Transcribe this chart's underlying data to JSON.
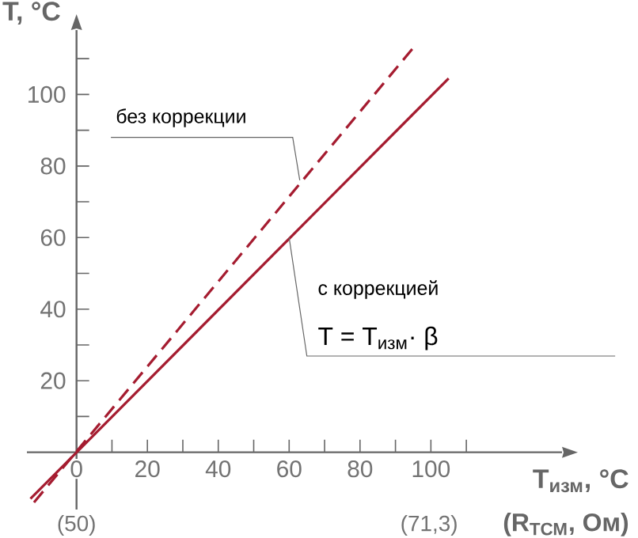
{
  "chart_data": {
    "type": "line",
    "xlabel": "T$_{изм}$, °C",
    "ylabel": "T, °C",
    "xlim": [
      -14,
      137
    ],
    "ylim": [
      -16,
      118
    ],
    "xticks": [
      0,
      {
        "value": 10,
        "label": null
      },
      20,
      {
        "value": 30,
        "label": null
      },
      40,
      {
        "value": 50,
        "label": null
      },
      60,
      {
        "value": 70,
        "label": null
      },
      80,
      {
        "value": 90,
        "label": null
      },
      100,
      {
        "value": 110,
        "label": null
      }
    ],
    "yticks": [
      {
        "value": 10,
        "label": null
      },
      20,
      {
        "value": 30,
        "label": null
      },
      40,
      {
        "value": 50,
        "label": null
      },
      60,
      {
        "value": 70,
        "label": null
      },
      80,
      {
        "value": 90,
        "label": null
      },
      100,
      {
        "value": 110,
        "label": null
      }
    ],
    "series": [
      {
        "x": [
          -12,
          95
        ],
        "values": [
          -14,
          113
        ],
        "line_style": "dashed",
        "color": "#a51c30"
      },
      {
        "x": [
          -13,
          105
        ],
        "values": [
          -13,
          104.5
        ],
        "line_style": "solid",
        "color": "#a51c30"
      }
    ],
    "annotations": [
      {
        "text": "без коррекции",
        "x": 63,
        "y": 76
      },
      "с коррекцией",
      {
        "text": "T = T$_{изм}$· β",
        "x": 60,
        "y": 60
      },
      "(50)",
      "(71,3)",
      "(R$_{ТСМ}$, Ом)"
    ]
  }
}
